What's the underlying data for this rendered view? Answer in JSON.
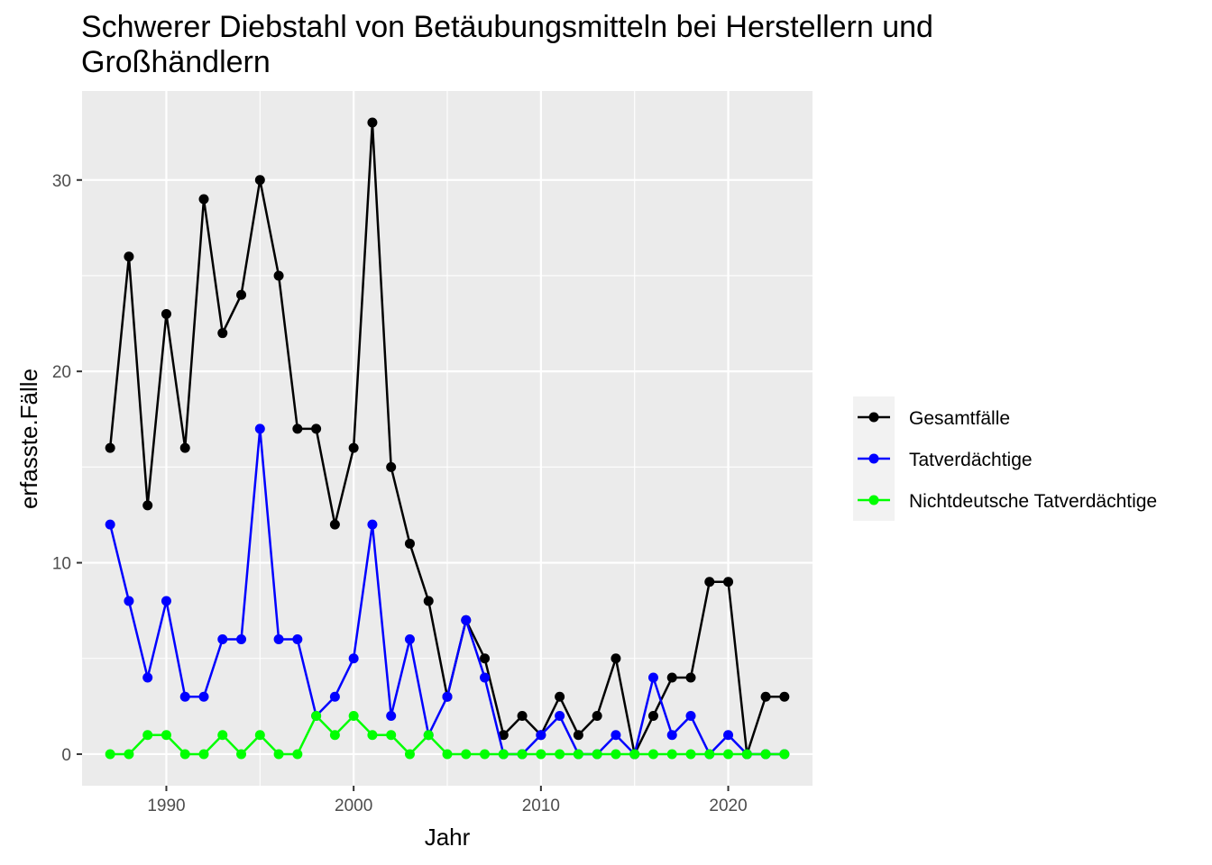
{
  "chart_data": {
    "type": "line",
    "title_lines": [
      "Schwerer Diebstahl von Betäubungsmitteln bei Herstellern und",
      "Großhändlern"
    ],
    "xlabel": "Jahr",
    "ylabel": "erfasste.Fälle",
    "xlim": [
      1985.5,
      2024.5
    ],
    "ylim": [
      -1.65,
      34.65
    ],
    "x_ticks": [
      1990,
      2000,
      2010,
      2020
    ],
    "y_ticks": [
      0,
      10,
      20,
      30
    ],
    "grid": true,
    "legend_position": "right",
    "x": [
      1987,
      1988,
      1989,
      1990,
      1991,
      1992,
      1993,
      1994,
      1995,
      1996,
      1997,
      1998,
      1999,
      2000,
      2001,
      2002,
      2003,
      2004,
      2005,
      2006,
      2007,
      2008,
      2009,
      2010,
      2011,
      2012,
      2013,
      2014,
      2015,
      2016,
      2017,
      2018,
      2019,
      2020,
      2021,
      2022,
      2023
    ],
    "series": [
      {
        "name": "Gesamtfälle",
        "color": "#000000",
        "values": [
          16,
          26,
          13,
          23,
          16,
          29,
          22,
          24,
          30,
          25,
          17,
          17,
          12,
          16,
          33,
          15,
          11,
          8,
          3,
          7,
          5,
          1,
          2,
          1,
          3,
          1,
          2,
          5,
          0,
          2,
          4,
          4,
          9,
          9,
          0,
          3,
          3
        ]
      },
      {
        "name": "Tatverdächtige",
        "color": "#0000ff",
        "values": [
          12,
          8,
          4,
          8,
          3,
          3,
          6,
          6,
          17,
          6,
          6,
          2,
          3,
          5,
          12,
          2,
          6,
          1,
          3,
          7,
          4,
          0,
          0,
          1,
          2,
          0,
          0,
          1,
          0,
          4,
          1,
          2,
          0,
          1,
          0,
          0,
          0
        ]
      },
      {
        "name": "Nichtdeutsche Tatverdächtige",
        "color": "#00ff00",
        "values": [
          0,
          0,
          1,
          1,
          0,
          0,
          1,
          0,
          1,
          0,
          0,
          2,
          1,
          2,
          1,
          1,
          0,
          1,
          0,
          0,
          0,
          0,
          0,
          0,
          0,
          0,
          0,
          0,
          0,
          0,
          0,
          0,
          0,
          0,
          0,
          0,
          0
        ]
      }
    ]
  }
}
